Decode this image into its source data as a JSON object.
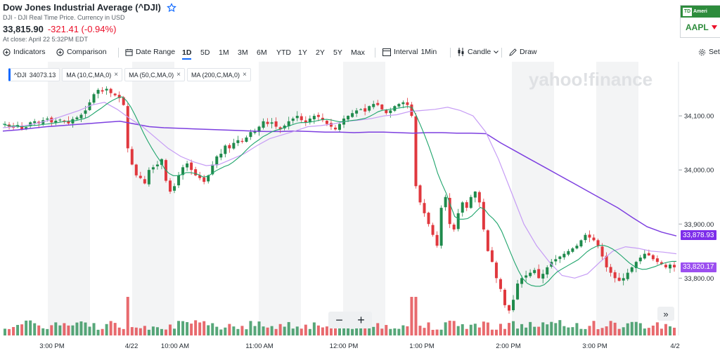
{
  "header": {
    "title": "Dow Jones Industrial Average (^DJI)",
    "subtitle": "DJI - DJI Real Time Price. Currency in USD",
    "price": "33,815.90",
    "change": "-321.41 (-0.94%)",
    "close_note": "At close: April 22 5:32PM EDT"
  },
  "ad": {
    "brand": "Ameri",
    "logo": "TD",
    "ticker": "AAPL"
  },
  "toolbar": {
    "indicators": "Indicators",
    "comparison": "Comparison",
    "date_range": "Date Range",
    "ranges": [
      "1D",
      "5D",
      "1M",
      "3M",
      "6M",
      "YTD",
      "1Y",
      "2Y",
      "5Y",
      "Max"
    ],
    "active_range": "1D",
    "interval_label": "Interval",
    "interval_value": "1Min",
    "chart_type": "Candle",
    "draw": "Draw",
    "settings": "Set"
  },
  "legend": [
    {
      "label": "^DJI",
      "value": "34073.13"
    },
    {
      "label": "MA (10,C,MA,0)"
    },
    {
      "label": "MA (50,C,MA,0)"
    },
    {
      "label": "MA (200,C,MA,0)"
    }
  ],
  "watermark": "yahoo!finance",
  "price_tags": {
    "ma200": {
      "value": "33,878.93",
      "color": "#7d2eea"
    },
    "last": {
      "value": "33,820.17",
      "color": "#9c4ff0"
    }
  },
  "colors": {
    "up": "#1f8a4c",
    "down": "#e0383e",
    "ma10": "#1ea46b",
    "ma50": "#c69cf5",
    "ma200": "#7d3fe0",
    "band": "#f3f4f5"
  },
  "zoom": {
    "minus": "−",
    "plus": "+"
  },
  "forward_icon": "»",
  "chart_data": {
    "type": "candlestick",
    "ylim": [
      33720,
      34200
    ],
    "y_ticks": [
      {
        "value": 34100,
        "label": "34,100.00"
      },
      {
        "value": 34000,
        "label": "34,000.00"
      },
      {
        "value": 33900,
        "label": "33,900.00"
      },
      {
        "value": 33800,
        "label": "33,800.00"
      }
    ],
    "x_labels": [
      "3:00 PM",
      "4/22",
      "10:00 AM",
      "11:00 AM",
      "12:00 PM",
      "1:00 PM",
      "2:00 PM",
      "3:00 PM",
      "4/2"
    ],
    "close_series": [
      34085,
      34080,
      34078,
      34083,
      34075,
      34079,
      34088,
      34090,
      34086,
      34092,
      34095,
      34088,
      34091,
      34093,
      34090,
      34086,
      34094,
      34097,
      34102,
      34110,
      34125,
      34140,
      34148,
      34145,
      34150,
      34142,
      34138,
      34133,
      34120,
      34040,
      34010,
      33990,
      33985,
      33975,
      34000,
      34005,
      34010,
      34020,
      33980,
      33960,
      33970,
      33990,
      34005,
      34012,
      34000,
      33990,
      33985,
      33978,
      33990,
      34010,
      34025,
      34030,
      34045,
      34040,
      34050,
      34055,
      34052,
      34060,
      34070,
      34072,
      34080,
      34090,
      34085,
      34088,
      34080,
      34075,
      34082,
      34090,
      34095,
      34100,
      34092,
      34088,
      34095,
      34100,
      34098,
      34092,
      34085,
      34080,
      34075,
      34085,
      34095,
      34100,
      34105,
      34110,
      34112,
      34108,
      34118,
      34122,
      34120,
      34112,
      34105,
      34110,
      34118,
      34122,
      34125,
      34120,
      34100,
      33970,
      33940,
      33920,
      33900,
      33880,
      33860,
      33930,
      33950,
      33900,
      33890,
      33920,
      33940,
      33930,
      33950,
      33960,
      33940,
      33890,
      33850,
      33830,
      33800,
      33780,
      33750,
      33740,
      33760,
      33790,
      33800,
      33805,
      33810,
      33815,
      33800,
      33808,
      33820,
      33830,
      33835,
      33840,
      33845,
      33850,
      33855,
      33860,
      33870,
      33880,
      33875,
      33870,
      33860,
      33840,
      33820,
      33810,
      33800,
      33795,
      33800,
      33810,
      33820,
      33830,
      33838,
      33845,
      33842,
      33835,
      33830,
      33826,
      33820,
      33825,
      33820
    ],
    "ma200_series": [
      34072,
      34074,
      34077,
      34080,
      34082,
      34084,
      34086,
      34088,
      34090,
      34085,
      34080,
      34078,
      34077,
      34076,
      34075,
      34074,
      34073,
      34072,
      34071,
      34071,
      34072,
      34071,
      34070,
      34070,
      34069,
      34070,
      34070,
      34069,
      34068,
      34069,
      34069,
      34068,
      34068,
      34067,
      34050,
      34035,
      34020,
      34005,
      33990,
      33975,
      33960,
      33945,
      33930,
      33912,
      33895,
      33885,
      33878
    ],
    "ma50_series": [
      34078,
      34080,
      34083,
      34088,
      34094,
      34102,
      34110,
      34120,
      34125,
      34112,
      34095,
      34080,
      34060,
      34040,
      34025,
      34015,
      34008,
      34010,
      34020,
      34030,
      34045,
      34058,
      34065,
      34072,
      34080,
      34082,
      34085,
      34090,
      34092,
      34095,
      34100,
      34102,
      34108,
      34110,
      34112,
      34116,
      34110,
      34100,
      34070,
      34020,
      33960,
      33900,
      33860,
      33830,
      33805,
      33800,
      33808,
      33830,
      33850,
      33858,
      33855,
      33850,
      33848,
      33845
    ]
  }
}
